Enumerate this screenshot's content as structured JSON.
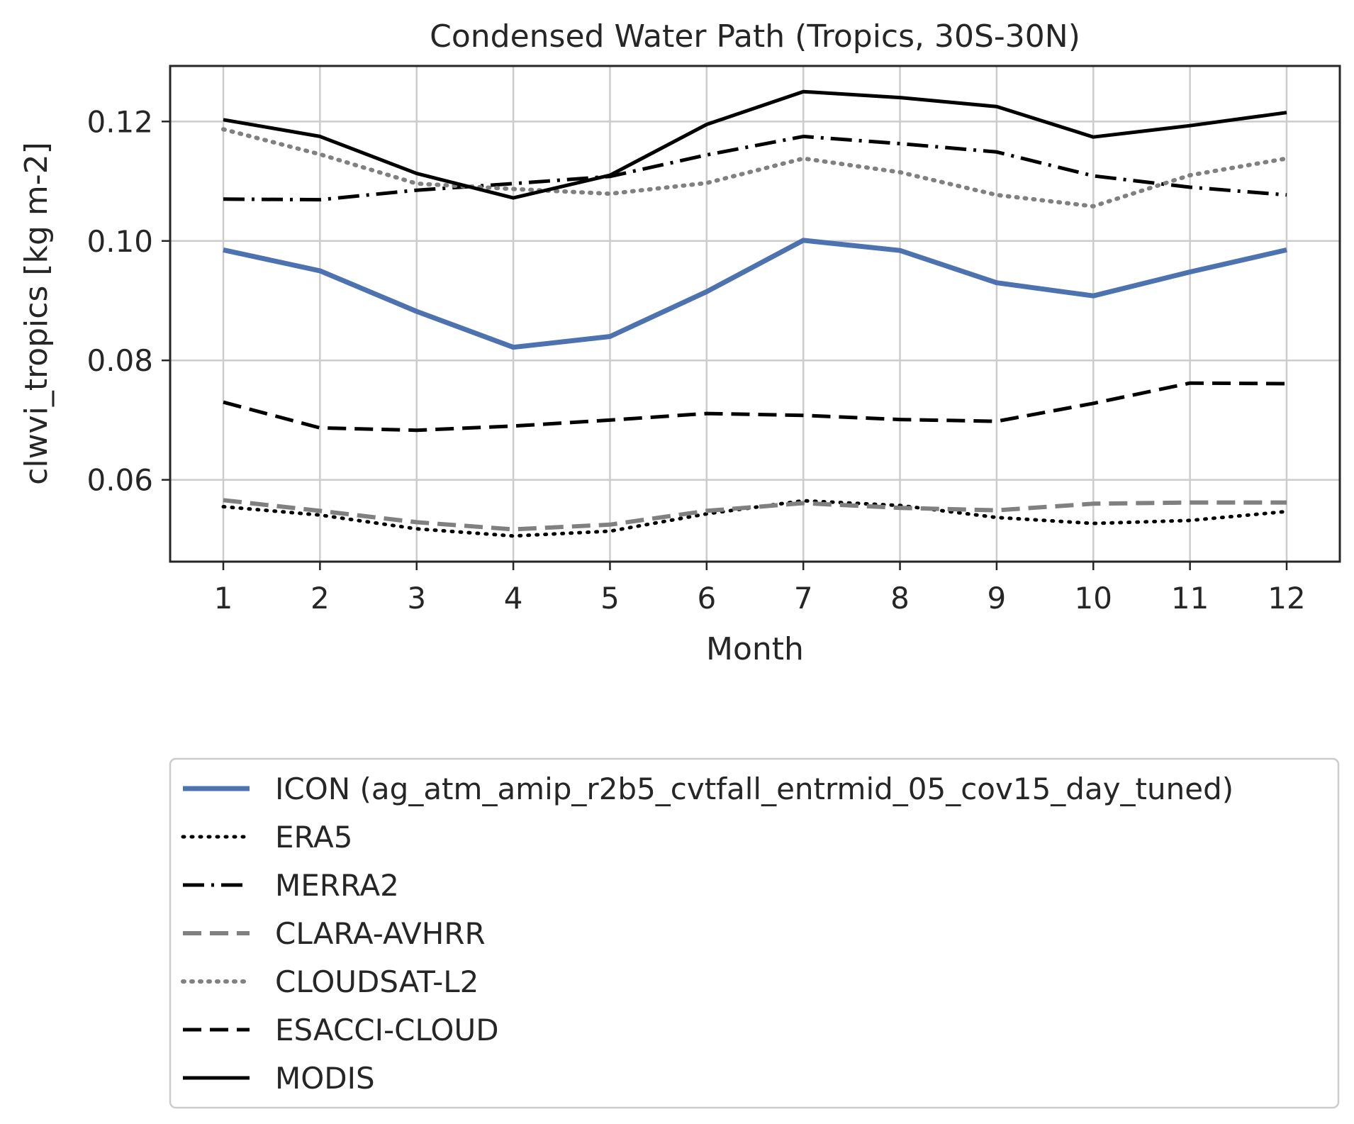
{
  "chart_data": {
    "type": "line",
    "title": "Condensed Water Path (Tropics, 30S-30N)",
    "xlabel": "Month",
    "ylabel": "clwvi_tropics [kg m-2]",
    "x": [
      1,
      2,
      3,
      4,
      5,
      6,
      7,
      8,
      9,
      10,
      11,
      12
    ],
    "xticks": [
      "1",
      "2",
      "3",
      "4",
      "5",
      "6",
      "7",
      "8",
      "9",
      "10",
      "11",
      "12"
    ],
    "yticks": [
      "0.06",
      "0.08",
      "0.10",
      "0.12"
    ],
    "ylim": [
      0.0463,
      0.1293
    ],
    "xlim": [
      0.45,
      12.55
    ],
    "grid": true,
    "legend_position": "below",
    "series": [
      {
        "name": "ICON (ag_atm_amip_r2b5_cvtfall_entrmid_05_cov15_day_tuned)",
        "style": "solid",
        "color": "#4c72b0",
        "width": 7,
        "values": [
          0.0985,
          0.095,
          0.0882,
          0.0822,
          0.084,
          0.0915,
          0.1001,
          0.0984,
          0.093,
          0.0908,
          0.0948,
          0.0985
        ]
      },
      {
        "name": "ERA5",
        "style": "dotted",
        "color": "#000000",
        "width": 5,
        "values": [
          0.0555,
          0.0541,
          0.0518,
          0.0506,
          0.0514,
          0.0543,
          0.0565,
          0.0557,
          0.0537,
          0.0527,
          0.0532,
          0.0547
        ]
      },
      {
        "name": "MERRA2",
        "style": "dashdot",
        "color": "#000000",
        "width": 5,
        "values": [
          0.107,
          0.1069,
          0.1085,
          0.1096,
          0.1108,
          0.1144,
          0.1175,
          0.1163,
          0.1149,
          0.1109,
          0.109,
          0.1077
        ]
      },
      {
        "name": "CLARA-AVHRR",
        "style": "dashed",
        "color": "#808080",
        "width": 6,
        "values": [
          0.0566,
          0.0548,
          0.0529,
          0.0517,
          0.0525,
          0.0548,
          0.0561,
          0.0553,
          0.0549,
          0.056,
          0.0562,
          0.0562
        ]
      },
      {
        "name": "CLOUDSAT-L2",
        "style": "dotted",
        "color": "#808080",
        "width": 6,
        "values": [
          0.1187,
          0.1145,
          0.1096,
          0.1087,
          0.1079,
          0.1097,
          0.1138,
          0.1115,
          0.1077,
          0.1058,
          0.111,
          0.1138
        ]
      },
      {
        "name": "ESACCI-CLOUD",
        "style": "dashed",
        "color": "#000000",
        "width": 5,
        "values": [
          0.073,
          0.0687,
          0.0683,
          0.069,
          0.07,
          0.0711,
          0.0708,
          0.0701,
          0.0698,
          0.0728,
          0.0762,
          0.0761
        ]
      },
      {
        "name": "MODIS",
        "style": "solid",
        "color": "#000000",
        "width": 5,
        "values": [
          0.1203,
          0.1175,
          0.1113,
          0.1072,
          0.111,
          0.1195,
          0.125,
          0.124,
          0.1225,
          0.1174,
          0.1193,
          0.1215
        ]
      }
    ]
  }
}
